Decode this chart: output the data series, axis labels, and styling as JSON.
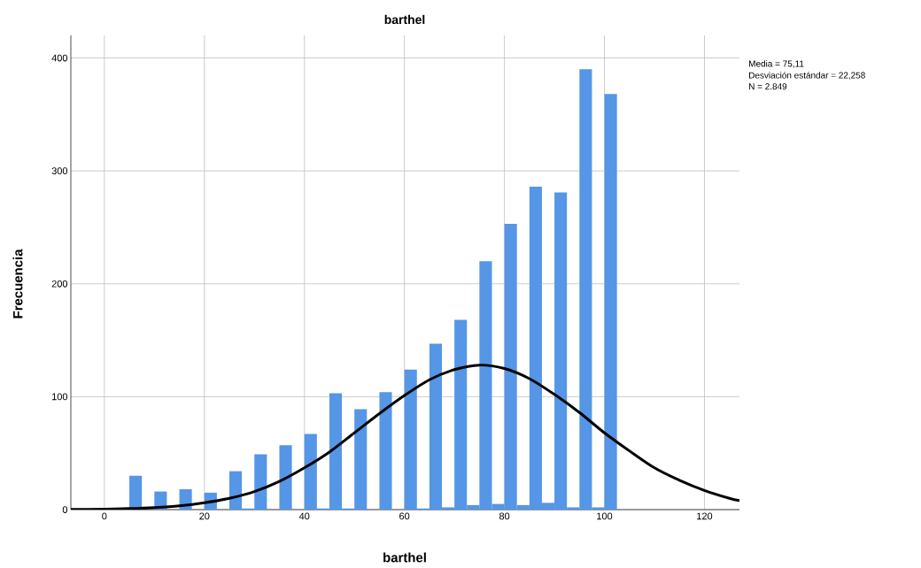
{
  "chart_data": {
    "type": "histogram",
    "title": "barthel",
    "xlabel": "barthel",
    "ylabel": "Frecuencia",
    "annotations": [
      "Media = 75,11",
      "Desviación estándar = 22,258",
      "N = 2.849"
    ],
    "series": [
      {
        "color": "#5596e6",
        "bins": [
          5,
          7.5,
          10,
          12.5,
          15,
          17.5,
          20,
          22.5,
          25,
          27.5,
          30,
          32.5,
          35,
          37.5,
          40,
          42.5,
          45,
          47.5,
          50,
          52.5,
          55,
          57.5,
          60,
          62.5,
          65,
          67.5,
          70,
          72.5,
          75,
          77.5,
          80,
          82.5,
          85,
          87.5,
          90,
          92.5,
          95,
          97.5,
          100,
          102.5
        ],
        "values": [
          30,
          0,
          16,
          0,
          18,
          0,
          15,
          0,
          34,
          1,
          49,
          0,
          57,
          0,
          67,
          1,
          103,
          1,
          89,
          0,
          104,
          0,
          124,
          1,
          147,
          2,
          168,
          4,
          220,
          5,
          253,
          4,
          286,
          6,
          281,
          2,
          390,
          2,
          368
        ]
      },
      {
        "type": "line",
        "color": "#000000",
        "x": [
          -6.7,
          0,
          5,
          10,
          15,
          20,
          25,
          30,
          35,
          40,
          45,
          50,
          55,
          60,
          65,
          70,
          75,
          80,
          85,
          90,
          95,
          100,
          105,
          110,
          115,
          120,
          125,
          127
        ],
        "values": [
          0.2,
          0.4,
          0.9,
          1.8,
          3.3,
          6,
          10,
          16,
          25,
          37,
          51,
          68,
          85,
          101,
          115,
          124,
          128,
          125,
          116,
          102,
          86,
          68,
          52,
          37,
          26,
          17,
          10,
          8
        ]
      }
    ],
    "xlim": [
      -6.7,
      127
    ],
    "ylim": [
      0,
      420
    ],
    "xticks": [
      0,
      20,
      40,
      60,
      80,
      100,
      120
    ],
    "yticks": [
      0,
      100,
      200,
      300,
      400
    ],
    "grid": true,
    "line_style": "solid"
  }
}
